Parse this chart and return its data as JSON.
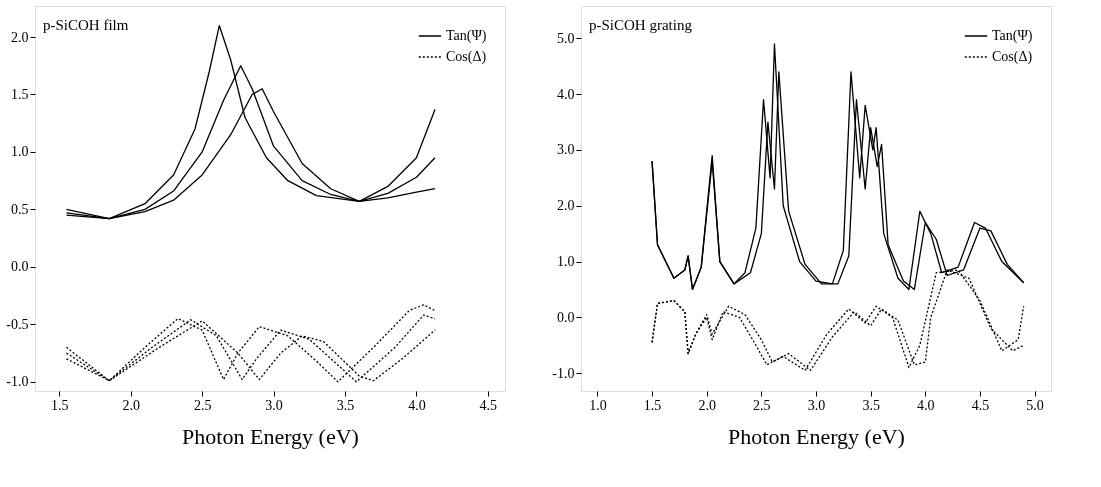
{
  "chart_data": [
    {
      "type": "line",
      "xlabel": "Photon Energy (eV)",
      "annotations": [
        "p-SiCOH film"
      ],
      "xlim": [
        1.33,
        4.62
      ],
      "ylim": [
        -1.08,
        2.27
      ],
      "xticks": [
        1.5,
        {
          "value": 2,
          "label": "2.0"
        },
        2.5,
        {
          "value": 3,
          "label": "3.0"
        },
        3.5,
        {
          "value": 4,
          "label": "4.0"
        },
        4.5
      ],
      "yticks": [
        {
          "value": -1,
          "label": "-1.0"
        },
        -0.5,
        {
          "value": 0,
          "label": "0.0"
        },
        0.5,
        {
          "value": 1,
          "label": "1.0"
        },
        1.5,
        {
          "value": 2,
          "label": "2.0"
        }
      ],
      "grid": false,
      "legend": "top right",
      "series": [
        {
          "name": "Tan(Ψ)",
          "color": "#000000",
          "line_style": "solid",
          "x": [
            1.55,
            1.85,
            2.1,
            2.3,
            2.45,
            2.55,
            2.62,
            2.7,
            2.8,
            2.95,
            3.1,
            3.3,
            3.6,
            3.8,
            4.0,
            4.13
          ],
          "values": [
            0.5,
            0.42,
            0.55,
            0.8,
            1.2,
            1.7,
            2.1,
            1.8,
            1.3,
            0.95,
            0.75,
            0.62,
            0.57,
            0.7,
            0.95,
            1.37
          ]
        },
        {
          "color": "#000000",
          "line_style": "solid",
          "x": [
            1.55,
            1.85,
            2.1,
            2.3,
            2.5,
            2.65,
            2.77,
            2.85,
            3.0,
            3.2,
            3.4,
            3.6,
            3.8,
            4.0,
            4.13
          ],
          "values": [
            0.47,
            0.42,
            0.5,
            0.66,
            1.0,
            1.45,
            1.75,
            1.55,
            1.05,
            0.75,
            0.63,
            0.57,
            0.64,
            0.78,
            0.95
          ]
        },
        {
          "color": "#000000",
          "line_style": "solid",
          "x": [
            1.55,
            1.85,
            2.1,
            2.3,
            2.5,
            2.7,
            2.85,
            2.92,
            3.0,
            3.2,
            3.4,
            3.6,
            3.8,
            4.0,
            4.13
          ],
          "values": [
            0.45,
            0.42,
            0.48,
            0.58,
            0.8,
            1.15,
            1.5,
            1.55,
            1.35,
            0.9,
            0.68,
            0.57,
            0.6,
            0.65,
            0.68
          ]
        },
        {
          "name": "Cos(Δ)",
          "color": "#000000",
          "line_style": "dotted",
          "x": [
            1.55,
            1.85,
            2.1,
            2.33,
            2.5,
            2.65,
            2.75,
            2.9,
            3.1,
            3.3,
            3.45,
            3.7,
            3.95,
            4.05,
            4.13
          ],
          "values": [
            -0.7,
            -0.99,
            -0.7,
            -0.45,
            -0.55,
            -0.98,
            -0.75,
            -0.52,
            -0.6,
            -0.82,
            -1.0,
            -0.7,
            -0.38,
            -0.33,
            -0.38
          ]
        },
        {
          "color": "#000000",
          "line_style": "dotted",
          "x": [
            1.55,
            1.85,
            2.15,
            2.42,
            2.6,
            2.78,
            2.88,
            3.05,
            3.25,
            3.58,
            3.85,
            4.05,
            4.13
          ],
          "values": [
            -0.75,
            -0.99,
            -0.7,
            -0.46,
            -0.6,
            -0.98,
            -0.8,
            -0.55,
            -0.63,
            -1.0,
            -0.7,
            -0.42,
            -0.45
          ]
        },
        {
          "color": "#000000",
          "line_style": "dotted",
          "x": [
            1.55,
            1.85,
            2.2,
            2.5,
            2.75,
            2.9,
            3.05,
            3.2,
            3.35,
            3.6,
            3.7,
            3.9,
            4.13
          ],
          "values": [
            -0.8,
            -0.99,
            -0.7,
            -0.47,
            -0.75,
            -0.98,
            -0.75,
            -0.6,
            -0.65,
            -0.95,
            -0.99,
            -0.8,
            -0.55
          ]
        }
      ]
    },
    {
      "type": "line",
      "xlabel": "Photon Energy (eV)",
      "annotations": [
        "p-SiCOH grating"
      ],
      "xlim": [
        0.85,
        5.15
      ],
      "ylim": [
        -1.32,
        5.58
      ],
      "xticks": [
        {
          "value": 1,
          "label": "1.0"
        },
        1.5,
        {
          "value": 2,
          "label": "2.0"
        },
        2.5,
        {
          "value": 3,
          "label": "3.0"
        },
        3.5,
        {
          "value": 4,
          "label": "4.0"
        },
        4.5,
        {
          "value": 5,
          "label": "5.0"
        }
      ],
      "yticks": [
        {
          "value": -1,
          "label": "-1.0"
        },
        {
          "value": 0,
          "label": "0.0"
        },
        {
          "value": 1,
          "label": "1.0"
        },
        {
          "value": 2,
          "label": "2.0"
        },
        {
          "value": 3,
          "label": "3.0"
        },
        {
          "value": 4,
          "label": "4.0"
        },
        {
          "value": 5,
          "label": "5.0"
        }
      ],
      "grid": false,
      "legend": "top right",
      "series": [
        {
          "name": "Tan(Ψ)",
          "color": "#000000",
          "line_style": "solid",
          "x": [
            1.5,
            1.55,
            1.7,
            1.8,
            1.83,
            1.87,
            1.95,
            2.05,
            2.12,
            2.25,
            2.35,
            2.45,
            2.52,
            2.58,
            2.62,
            2.7,
            2.85,
            3.0,
            3.15,
            3.25,
            3.32,
            3.4,
            3.45,
            3.52,
            3.55,
            3.62,
            3.75,
            3.85,
            3.95,
            4.05,
            4.15,
            4.3,
            4.45,
            4.55,
            4.7,
            4.9
          ],
          "values": [
            2.8,
            1.3,
            0.7,
            0.85,
            1.1,
            0.5,
            0.9,
            2.9,
            1.0,
            0.6,
            0.8,
            1.6,
            3.9,
            2.5,
            4.9,
            2.0,
            1.0,
            0.65,
            0.6,
            1.2,
            4.4,
            2.5,
            3.8,
            3.0,
            3.4,
            1.5,
            0.7,
            0.5,
            1.9,
            1.5,
            0.8,
            0.9,
            1.7,
            1.6,
            1.0,
            0.62
          ]
        },
        {
          "color": "#000000",
          "line_style": "solid",
          "x": [
            1.5,
            1.55,
            1.7,
            1.8,
            1.83,
            1.87,
            1.95,
            2.05,
            2.12,
            2.25,
            2.4,
            2.5,
            2.56,
            2.62,
            2.66,
            2.75,
            2.9,
            3.05,
            3.2,
            3.3,
            3.37,
            3.45,
            3.5,
            3.56,
            3.6,
            3.66,
            3.8,
            3.9,
            4.0,
            4.1,
            4.2,
            4.35,
            4.5,
            4.6,
            4.75,
            4.9
          ],
          "values": [
            2.8,
            1.3,
            0.7,
            0.85,
            1.1,
            0.5,
            0.9,
            2.8,
            1.0,
            0.6,
            0.8,
            1.5,
            3.5,
            2.3,
            4.4,
            1.9,
            0.95,
            0.6,
            0.6,
            1.1,
            3.9,
            2.3,
            3.4,
            2.7,
            3.1,
            1.3,
            0.65,
            0.5,
            1.7,
            1.4,
            0.75,
            0.85,
            1.6,
            1.55,
            0.95,
            0.62
          ]
        },
        {
          "name": "Cos(Δ)",
          "color": "#000000",
          "line_style": "dotted",
          "x": [
            1.5,
            1.55,
            1.7,
            1.8,
            1.83,
            1.9,
            2.0,
            2.05,
            2.15,
            2.3,
            2.45,
            2.55,
            2.7,
            2.9,
            3.1,
            3.3,
            3.45,
            3.55,
            3.7,
            3.85,
            3.95,
            4.1,
            4.3,
            4.5,
            4.7,
            4.85,
            4.9
          ],
          "values": [
            -0.45,
            0.25,
            0.3,
            0.1,
            -0.65,
            -0.3,
            0.0,
            -0.4,
            0.1,
            0.0,
            -0.5,
            -0.85,
            -0.7,
            -0.95,
            -0.3,
            0.15,
            -0.1,
            0.2,
            0.0,
            -0.9,
            -0.5,
            0.8,
            0.85,
            0.3,
            -0.6,
            -0.4,
            0.2
          ]
        },
        {
          "color": "#000000",
          "line_style": "dotted",
          "x": [
            1.5,
            1.55,
            1.7,
            1.8,
            1.83,
            1.9,
            2.0,
            2.05,
            2.2,
            2.35,
            2.5,
            2.6,
            2.75,
            2.95,
            3.15,
            3.35,
            3.5,
            3.6,
            3.75,
            3.9,
            4.0,
            4.05,
            4.2,
            4.4,
            4.6,
            4.8,
            4.9
          ],
          "values": [
            -0.45,
            0.25,
            0.3,
            0.1,
            -0.65,
            -0.3,
            0.05,
            -0.3,
            0.2,
            0.05,
            -0.4,
            -0.8,
            -0.65,
            -0.95,
            -0.35,
            0.1,
            -0.15,
            0.15,
            -0.05,
            -0.85,
            -0.8,
            0.0,
            0.85,
            0.7,
            -0.2,
            -0.6,
            -0.5
          ]
        }
      ]
    }
  ]
}
